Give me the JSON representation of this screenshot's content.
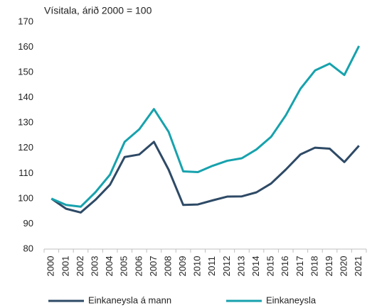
{
  "chart_data": {
    "type": "line",
    "title": "Vísitala, árið 2000 = 100",
    "categories": [
      "2000",
      "2001",
      "2002",
      "2003",
      "2004",
      "2005",
      "2006",
      "2007",
      "2008",
      "2009",
      "2010",
      "2011",
      "2012",
      "2013",
      "2014",
      "2015",
      "2016",
      "2017",
      "2018",
      "2019",
      "2020",
      "2021"
    ],
    "series": [
      {
        "name": "Einkaneysla á mann",
        "color": "#2e4a66",
        "values": [
          100,
          96,
          94.5,
          99.5,
          105.5,
          116.5,
          117.5,
          122.5,
          111.5,
          97.5,
          97.7,
          99.3,
          100.8,
          100.9,
          102.5,
          106,
          111.5,
          117.5,
          120.2,
          119.8,
          114.5,
          121
        ]
      },
      {
        "name": "Einkaneysla",
        "color": "#17a2ad",
        "values": [
          100,
          97.5,
          96.8,
          102.5,
          109.5,
          122.5,
          127.5,
          135.5,
          126.5,
          110.8,
          110.5,
          113,
          115,
          116,
          119.5,
          124.5,
          133,
          143.5,
          150.8,
          153.5,
          149,
          160.5
        ]
      }
    ],
    "ylim": [
      80,
      170
    ],
    "yticks": [
      80,
      90,
      100,
      110,
      120,
      130,
      140,
      150,
      160,
      170
    ],
    "grid": false,
    "legend": "bottom"
  }
}
